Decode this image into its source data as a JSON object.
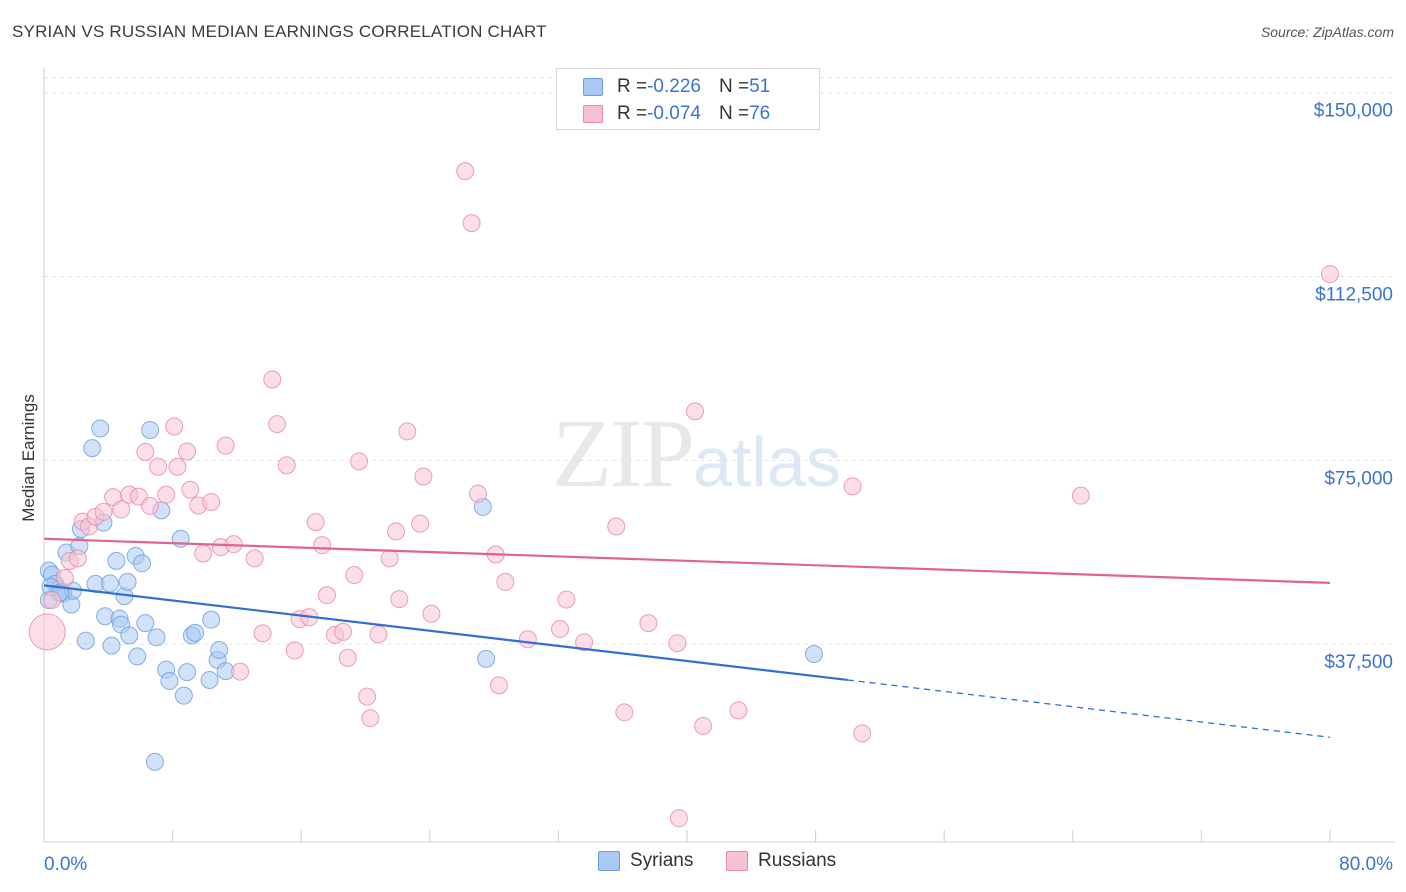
{
  "header": {
    "title": "SYRIAN VS RUSSIAN MEDIAN EARNINGS CORRELATION CHART",
    "source": "Source: ZipAtlas.com"
  },
  "legend": {
    "syrians": {
      "r_label": "R = ",
      "r_value": "-0.226",
      "n_label": "N = ",
      "n_value": "51"
    },
    "russians": {
      "r_label": "R = ",
      "r_value": "-0.074",
      "n_label": "N = ",
      "n_value": "76"
    }
  },
  "bottom_legend": {
    "syrians": "Syrians",
    "russians": "Russians"
  },
  "watermark": {
    "zip": "ZIP",
    "atlas": "atlas"
  },
  "colors": {
    "syrians_fill": "#a9c8f2",
    "syrians_stroke": "#6b9de0",
    "syrians_line": "#2f6fd6",
    "russians_fill": "#f7c3d3",
    "russians_stroke": "#e68aa8",
    "russians_line": "#e0648f",
    "tick_label": "#3a74d0",
    "grid": "#e3e3e3"
  },
  "chart_data": {
    "type": "scatter",
    "title": "SYRIAN VS RUSSIAN MEDIAN EARNINGS CORRELATION CHART",
    "xlabel": "",
    "ylabel": "Median Earnings",
    "xlim": [
      0,
      80
    ],
    "ylim": [
      0,
      153000
    ],
    "x_tick_labels": [
      "0.0%",
      "80.0%"
    ],
    "y_ticks": [
      37500,
      75000,
      112500,
      150000
    ],
    "y_tick_labels": [
      "$37,500",
      "$75,000",
      "$112,500",
      "$150,000"
    ],
    "grid": true,
    "legend_position": "top-center",
    "series": [
      {
        "name": "Syrians",
        "trend": {
          "x": [
            0,
            50
          ],
          "y": [
            49500,
            30200
          ],
          "dashed_to": [
            80,
            18500
          ]
        },
        "points": [
          [
            0.3,
            46500
          ],
          [
            0.3,
            52500
          ],
          [
            0.5,
            51700
          ],
          [
            0.7,
            49800
          ],
          [
            0.9,
            48700
          ],
          [
            1.1,
            48200
          ],
          [
            1.2,
            47800
          ],
          [
            1.4,
            56200
          ],
          [
            1.7,
            45600
          ],
          [
            1.8,
            48400
          ],
          [
            2.2,
            57500
          ],
          [
            2.3,
            61000
          ],
          [
            2.6,
            38200
          ],
          [
            3.0,
            77500
          ],
          [
            3.2,
            49800
          ],
          [
            3.5,
            81500
          ],
          [
            3.7,
            62300
          ],
          [
            3.8,
            43200
          ],
          [
            4.1,
            49900
          ],
          [
            4.2,
            37200
          ],
          [
            4.5,
            54500
          ],
          [
            4.7,
            42700
          ],
          [
            4.8,
            41500
          ],
          [
            5.0,
            47300
          ],
          [
            5.2,
            50200
          ],
          [
            5.3,
            39300
          ],
          [
            5.7,
            55500
          ],
          [
            5.8,
            35000
          ],
          [
            6.1,
            54000
          ],
          [
            6.3,
            41800
          ],
          [
            6.6,
            81200
          ],
          [
            6.9,
            13500
          ],
          [
            7.0,
            38900
          ],
          [
            7.3,
            64800
          ],
          [
            7.6,
            32300
          ],
          [
            7.8,
            30000
          ],
          [
            8.5,
            59000
          ],
          [
            8.7,
            27000
          ],
          [
            8.9,
            31800
          ],
          [
            9.2,
            39300
          ],
          [
            9.4,
            39800
          ],
          [
            10.4,
            42500
          ],
          [
            10.3,
            30200
          ],
          [
            10.8,
            34300
          ],
          [
            10.9,
            36300
          ],
          [
            11.3,
            32000
          ],
          [
            27.3,
            65500
          ],
          [
            27.5,
            34500
          ],
          [
            47.9,
            35500
          ],
          [
            0.4,
            49200
          ],
          [
            1.0,
            48000
          ]
        ]
      },
      {
        "name": "Russians",
        "trend": {
          "x": [
            0,
            80
          ],
          "y": [
            59000,
            50000
          ]
        },
        "points": [
          [
            0.2,
            40000
          ],
          [
            0.5,
            46500
          ],
          [
            1.3,
            51000
          ],
          [
            1.6,
            54500
          ],
          [
            2.1,
            55000
          ],
          [
            2.4,
            62500
          ],
          [
            2.8,
            61500
          ],
          [
            3.2,
            63500
          ],
          [
            3.7,
            64500
          ],
          [
            4.3,
            67500
          ],
          [
            4.8,
            65000
          ],
          [
            5.3,
            68000
          ],
          [
            5.9,
            67600
          ],
          [
            6.3,
            76700
          ],
          [
            6.6,
            65700
          ],
          [
            7.1,
            73700
          ],
          [
            7.6,
            68000
          ],
          [
            8.1,
            81900
          ],
          [
            8.3,
            73700
          ],
          [
            8.9,
            76800
          ],
          [
            9.1,
            69000
          ],
          [
            9.6,
            65800
          ],
          [
            9.9,
            56000
          ],
          [
            10.4,
            66500
          ],
          [
            11.0,
            57300
          ],
          [
            11.3,
            78000
          ],
          [
            11.8,
            57900
          ],
          [
            12.2,
            31900
          ],
          [
            13.1,
            55000
          ],
          [
            13.6,
            39700
          ],
          [
            14.2,
            91500
          ],
          [
            14.5,
            82400
          ],
          [
            15.1,
            74000
          ],
          [
            15.6,
            36200
          ],
          [
            15.9,
            42600
          ],
          [
            16.5,
            43000
          ],
          [
            16.9,
            62400
          ],
          [
            17.3,
            57700
          ],
          [
            17.6,
            47500
          ],
          [
            18.1,
            39400
          ],
          [
            18.6,
            40000
          ],
          [
            18.9,
            34700
          ],
          [
            19.3,
            51600
          ],
          [
            19.6,
            74800
          ],
          [
            20.1,
            26800
          ],
          [
            20.8,
            39500
          ],
          [
            21.5,
            55000
          ],
          [
            21.9,
            60500
          ],
          [
            22.1,
            46700
          ],
          [
            22.6,
            80900
          ],
          [
            23.4,
            62100
          ],
          [
            23.6,
            71700
          ],
          [
            24.1,
            43700
          ],
          [
            26.2,
            134000
          ],
          [
            26.6,
            123400
          ],
          [
            27.0,
            68200
          ],
          [
            28.1,
            55800
          ],
          [
            28.3,
            29100
          ],
          [
            28.7,
            50200
          ],
          [
            30.1,
            38500
          ],
          [
            32.1,
            40600
          ],
          [
            32.5,
            46600
          ],
          [
            33.6,
            37900
          ],
          [
            35.6,
            61500
          ],
          [
            36.1,
            23600
          ],
          [
            37.6,
            41800
          ],
          [
            39.4,
            37700
          ],
          [
            40.5,
            85000
          ],
          [
            41.0,
            20800
          ],
          [
            43.2,
            24000
          ],
          [
            50.3,
            69700
          ],
          [
            50.9,
            19300
          ],
          [
            64.5,
            67800
          ],
          [
            80.0,
            113000
          ],
          [
            39.5,
            2000
          ],
          [
            20.3,
            22400
          ]
        ]
      }
    ]
  }
}
